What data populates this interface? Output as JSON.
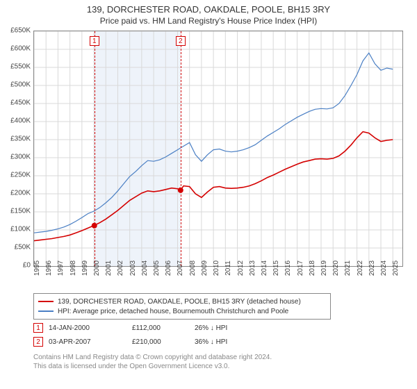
{
  "title": "139, DORCHESTER ROAD, OAKDALE, POOLE, BH15 3RY",
  "subtitle": "Price paid vs. HM Land Registry's House Price Index (HPI)",
  "chart": {
    "type": "line",
    "background_color": "#ffffff",
    "border_color": "#878787",
    "grid_color": "#d9d9d9",
    "ylim": [
      0,
      650000
    ],
    "ytick_step": 50000,
    "ytick_labels": [
      "£0",
      "£50K",
      "£100K",
      "£150K",
      "£200K",
      "£250K",
      "£300K",
      "£350K",
      "£400K",
      "£450K",
      "£500K",
      "£550K",
      "£600K",
      "£650K"
    ],
    "xlim": [
      1995,
      2025.8
    ],
    "xticks": [
      1995,
      1996,
      1997,
      1998,
      1999,
      2000,
      2001,
      2002,
      2003,
      2004,
      2005,
      2006,
      2007,
      2008,
      2009,
      2010,
      2011,
      2012,
      2013,
      2014,
      2015,
      2016,
      2017,
      2018,
      2019,
      2020,
      2021,
      2022,
      2023,
      2024,
      2025
    ],
    "label_fontsize": 10,
    "event_band": {
      "from": 2000.04,
      "to": 2007.25,
      "fill": "#eef3fa"
    },
    "event_lines": [
      {
        "x": 2000.04,
        "color": "#d40000",
        "marker": "1",
        "marker_top": 7
      },
      {
        "x": 2007.25,
        "color": "#d40000",
        "marker": "2",
        "marker_top": 7
      }
    ],
    "series": [
      {
        "name": "price_paid",
        "color": "#d40000",
        "width": 1.6,
        "points": [
          [
            1995.0,
            70000
          ],
          [
            1995.5,
            72000
          ],
          [
            1996.0,
            74000
          ],
          [
            1996.5,
            76000
          ],
          [
            1997.0,
            79000
          ],
          [
            1997.5,
            82000
          ],
          [
            1998.0,
            86000
          ],
          [
            1998.5,
            92000
          ],
          [
            1999.0,
            98000
          ],
          [
            1999.5,
            105000
          ],
          [
            2000.0,
            112000
          ],
          [
            2000.5,
            120000
          ],
          [
            2001.0,
            130000
          ],
          [
            2001.5,
            142000
          ],
          [
            2002.0,
            154000
          ],
          [
            2002.5,
            168000
          ],
          [
            2003.0,
            182000
          ],
          [
            2003.5,
            192000
          ],
          [
            2004.0,
            202000
          ],
          [
            2004.5,
            208000
          ],
          [
            2005.0,
            206000
          ],
          [
            2005.5,
            208000
          ],
          [
            2006.0,
            212000
          ],
          [
            2006.5,
            216000
          ],
          [
            2007.0,
            214000
          ],
          [
            2007.25,
            210000
          ],
          [
            2007.5,
            222000
          ],
          [
            2008.0,
            220000
          ],
          [
            2008.5,
            200000
          ],
          [
            2009.0,
            190000
          ],
          [
            2009.5,
            205000
          ],
          [
            2010.0,
            218000
          ],
          [
            2010.5,
            220000
          ],
          [
            2011.0,
            216000
          ],
          [
            2011.5,
            215000
          ],
          [
            2012.0,
            216000
          ],
          [
            2012.5,
            218000
          ],
          [
            2013.0,
            222000
          ],
          [
            2013.5,
            228000
          ],
          [
            2014.0,
            236000
          ],
          [
            2014.5,
            245000
          ],
          [
            2015.0,
            252000
          ],
          [
            2015.5,
            260000
          ],
          [
            2016.0,
            268000
          ],
          [
            2016.5,
            275000
          ],
          [
            2017.0,
            282000
          ],
          [
            2017.5,
            288000
          ],
          [
            2018.0,
            292000
          ],
          [
            2018.5,
            296000
          ],
          [
            2019.0,
            297000
          ],
          [
            2019.5,
            296000
          ],
          [
            2020.0,
            298000
          ],
          [
            2020.5,
            305000
          ],
          [
            2021.0,
            318000
          ],
          [
            2021.5,
            335000
          ],
          [
            2022.0,
            355000
          ],
          [
            2022.5,
            372000
          ],
          [
            2023.0,
            368000
          ],
          [
            2023.5,
            355000
          ],
          [
            2024.0,
            345000
          ],
          [
            2024.5,
            348000
          ],
          [
            2025.0,
            350000
          ]
        ],
        "markers": [
          {
            "x": 2000.04,
            "y": 112000
          },
          {
            "x": 2007.25,
            "y": 210000
          }
        ]
      },
      {
        "name": "hpi",
        "color": "#4a7fc4",
        "width": 1.2,
        "points": [
          [
            1995.0,
            92000
          ],
          [
            1995.5,
            94000
          ],
          [
            1996.0,
            96000
          ],
          [
            1996.5,
            99000
          ],
          [
            1997.0,
            103000
          ],
          [
            1997.5,
            108000
          ],
          [
            1998.0,
            115000
          ],
          [
            1998.5,
            124000
          ],
          [
            1999.0,
            134000
          ],
          [
            1999.5,
            145000
          ],
          [
            2000.0,
            152000
          ],
          [
            2000.5,
            162000
          ],
          [
            2001.0,
            175000
          ],
          [
            2001.5,
            190000
          ],
          [
            2002.0,
            208000
          ],
          [
            2002.5,
            228000
          ],
          [
            2003.0,
            248000
          ],
          [
            2003.5,
            262000
          ],
          [
            2004.0,
            278000
          ],
          [
            2004.5,
            292000
          ],
          [
            2005.0,
            290000
          ],
          [
            2005.5,
            294000
          ],
          [
            2006.0,
            302000
          ],
          [
            2006.5,
            312000
          ],
          [
            2007.0,
            322000
          ],
          [
            2007.5,
            332000
          ],
          [
            2008.0,
            342000
          ],
          [
            2008.5,
            308000
          ],
          [
            2009.0,
            290000
          ],
          [
            2009.5,
            308000
          ],
          [
            2010.0,
            322000
          ],
          [
            2010.5,
            324000
          ],
          [
            2011.0,
            318000
          ],
          [
            2011.5,
            316000
          ],
          [
            2012.0,
            318000
          ],
          [
            2012.5,
            322000
          ],
          [
            2013.0,
            328000
          ],
          [
            2013.5,
            336000
          ],
          [
            2014.0,
            348000
          ],
          [
            2014.5,
            360000
          ],
          [
            2015.0,
            370000
          ],
          [
            2015.5,
            380000
          ],
          [
            2016.0,
            392000
          ],
          [
            2016.5,
            402000
          ],
          [
            2017.0,
            412000
          ],
          [
            2017.5,
            420000
          ],
          [
            2018.0,
            428000
          ],
          [
            2018.5,
            434000
          ],
          [
            2019.0,
            436000
          ],
          [
            2019.5,
            435000
          ],
          [
            2020.0,
            438000
          ],
          [
            2020.5,
            450000
          ],
          [
            2021.0,
            472000
          ],
          [
            2021.5,
            500000
          ],
          [
            2022.0,
            530000
          ],
          [
            2022.5,
            568000
          ],
          [
            2023.0,
            590000
          ],
          [
            2023.5,
            560000
          ],
          [
            2024.0,
            542000
          ],
          [
            2024.5,
            548000
          ],
          [
            2025.0,
            545000
          ]
        ]
      }
    ]
  },
  "legend": {
    "items": [
      {
        "color": "#d40000",
        "label": "139, DORCHESTER ROAD, OAKDALE, POOLE, BH15 3RY (detached house)"
      },
      {
        "color": "#4a7fc4",
        "label": "HPI: Average price, detached house, Bournemouth Christchurch and Poole"
      }
    ]
  },
  "marker_table": {
    "rows": [
      {
        "n": "1",
        "border": "#d40000",
        "date": "14-JAN-2000",
        "price": "£112,000",
        "pct": "26% ↓ HPI"
      },
      {
        "n": "2",
        "border": "#d40000",
        "date": "03-APR-2007",
        "price": "£210,000",
        "pct": "36% ↓ HPI"
      }
    ]
  },
  "footer": {
    "line1": "Contains HM Land Registry data © Crown copyright and database right 2024.",
    "line2": "This data is licensed under the Open Government Licence v3.0."
  }
}
